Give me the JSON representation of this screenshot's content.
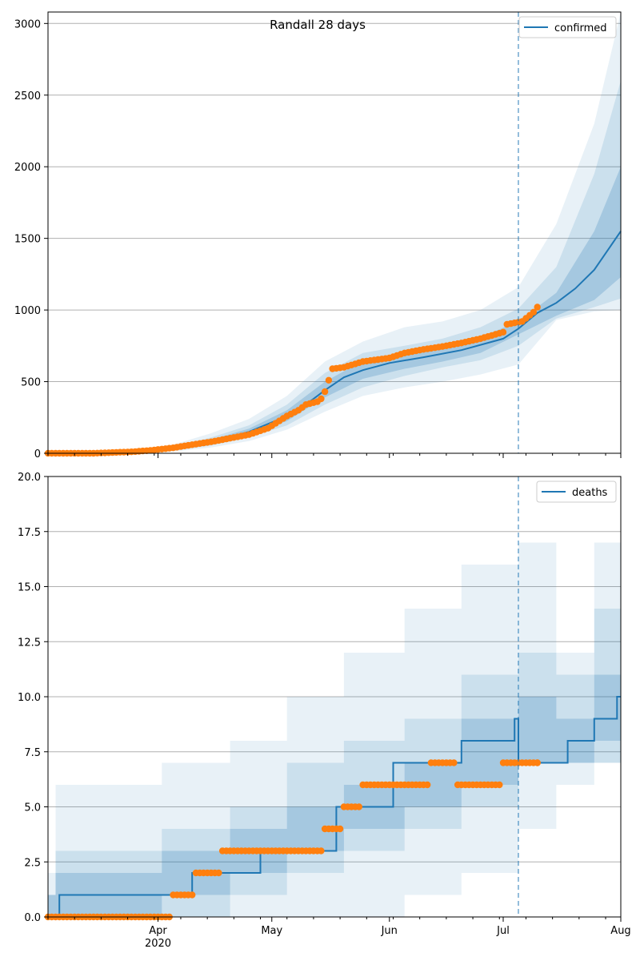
{
  "chart_data": [
    {
      "type": "line",
      "title": "Randall 28 days",
      "xlabel": "",
      "ylabel": "",
      "x_range": [
        "2020-03-03",
        "2020-08-01"
      ],
      "ylim": [
        0,
        3080
      ],
      "y_ticks": [
        0,
        500,
        1000,
        1500,
        2000,
        2500,
        3000
      ],
      "y_tick_labels": [
        "0",
        "500",
        "1000",
        "1500",
        "2000",
        "2500",
        "3000"
      ],
      "x_ticks": [
        "2020-04-01",
        "2020-05-01",
        "2020-06-01",
        "2020-07-01",
        "2020-08-01"
      ],
      "x_tick_labels": [
        "Apr",
        "May",
        "Jun",
        "Jul",
        "Aug"
      ],
      "x_year_label": "2020",
      "grid": "horizontal",
      "legend_position": "top-right",
      "forecast_start": "2020-07-05",
      "colors": {
        "model": "#1f77b4",
        "observed": "#ff7f0e",
        "band": "#1f77b4"
      },
      "series": [
        {
          "name": "confirmed",
          "kind": "model-line",
          "x": [
            "2020-03-03",
            "2020-03-15",
            "2020-03-25",
            "2020-04-05",
            "2020-04-15",
            "2020-04-25",
            "2020-05-05",
            "2020-05-10",
            "2020-05-15",
            "2020-05-20",
            "2020-05-25",
            "2020-06-01",
            "2020-06-10",
            "2020-06-20",
            "2020-07-01",
            "2020-07-05",
            "2020-07-10",
            "2020-07-15",
            "2020-07-20",
            "2020-07-25",
            "2020-08-01"
          ],
          "y": [
            0,
            2,
            8,
            30,
            80,
            150,
            260,
            340,
            440,
            530,
            580,
            630,
            670,
            720,
            800,
            870,
            980,
            1050,
            1150,
            1280,
            1550
          ]
        },
        {
          "kind": "band",
          "level": "inner",
          "x": [
            "2020-03-03",
            "2020-03-25",
            "2020-04-05",
            "2020-04-15",
            "2020-04-25",
            "2020-05-05",
            "2020-05-15",
            "2020-05-25",
            "2020-06-05",
            "2020-06-15",
            "2020-06-25",
            "2020-07-05",
            "2020-07-15",
            "2020-07-25",
            "2020-08-01"
          ],
          "lower": [
            0,
            5,
            24,
            66,
            130,
            225,
            390,
            520,
            590,
            640,
            700,
            830,
            960,
            1070,
            1230
          ],
          "upper": [
            0,
            11,
            37,
            95,
            172,
            300,
            500,
            645,
            700,
            750,
            810,
            920,
            1120,
            1550,
            2000
          ]
        },
        {
          "kind": "band",
          "level": "middle",
          "x": [
            "2020-03-03",
            "2020-03-25",
            "2020-04-05",
            "2020-04-15",
            "2020-04-25",
            "2020-05-05",
            "2020-05-15",
            "2020-05-25",
            "2020-06-05",
            "2020-06-15",
            "2020-06-25",
            "2020-07-05",
            "2020-07-15",
            "2020-07-25",
            "2020-08-01"
          ],
          "lower": [
            0,
            3,
            18,
            55,
            110,
            195,
            340,
            460,
            540,
            600,
            650,
            750,
            940,
            1020,
            1080
          ],
          "upper": [
            0,
            14,
            45,
            110,
            195,
            340,
            560,
            700,
            750,
            800,
            880,
            1010,
            1300,
            1950,
            2600
          ]
        },
        {
          "kind": "band",
          "level": "outer",
          "x": [
            "2020-03-03",
            "2020-03-25",
            "2020-04-05",
            "2020-04-15",
            "2020-04-25",
            "2020-05-05",
            "2020-05-15",
            "2020-05-25",
            "2020-06-05",
            "2020-06-15",
            "2020-06-25",
            "2020-07-05",
            "2020-07-15",
            "2020-07-25",
            "2020-08-01"
          ],
          "lower": [
            0,
            2,
            12,
            40,
            85,
            165,
            290,
            400,
            460,
            500,
            550,
            620,
            930,
            990,
            1000
          ],
          "upper": [
            0,
            20,
            60,
            140,
            240,
            400,
            640,
            780,
            880,
            920,
            1000,
            1160,
            1600,
            2300,
            3080
          ]
        },
        {
          "kind": "observed",
          "x": [
            "2020-03-03",
            "2020-03-10",
            "2020-03-15",
            "2020-03-20",
            "2020-03-25",
            "2020-03-30",
            "2020-04-05",
            "2020-04-10",
            "2020-04-15",
            "2020-04-20",
            "2020-04-25",
            "2020-04-30",
            "2020-05-05",
            "2020-05-08",
            "2020-05-10",
            "2020-05-13",
            "2020-05-14",
            "2020-05-15",
            "2020-05-17",
            "2020-05-20",
            "2020-05-25",
            "2020-06-01",
            "2020-06-05",
            "2020-06-10",
            "2020-06-15",
            "2020-06-20",
            "2020-06-25",
            "2020-07-01",
            "2020-07-02",
            "2020-07-05",
            "2020-07-06",
            "2020-07-09",
            "2020-07-10"
          ],
          "y": [
            0,
            0,
            0,
            5,
            10,
            20,
            38,
            60,
            80,
            105,
            130,
            175,
            260,
            300,
            340,
            360,
            380,
            430,
            590,
            600,
            640,
            665,
            700,
            725,
            745,
            770,
            800,
            845,
            900,
            915,
            920,
            985,
            1020
          ]
        }
      ]
    },
    {
      "type": "line",
      "title": "",
      "xlabel": "",
      "ylabel": "",
      "x_range": [
        "2020-03-03",
        "2020-08-01"
      ],
      "ylim": [
        0,
        20
      ],
      "y_ticks": [
        0,
        2.5,
        5,
        7.5,
        10,
        12.5,
        15,
        17.5,
        20
      ],
      "y_tick_labels": [
        "0.0",
        "2.5",
        "5.0",
        "7.5",
        "10.0",
        "12.5",
        "15.0",
        "17.5",
        "20.0"
      ],
      "x_ticks": [
        "2020-04-01",
        "2020-05-01",
        "2020-06-01",
        "2020-07-01",
        "2020-08-01"
      ],
      "x_tick_labels": [
        "Apr",
        "May",
        "Jun",
        "Jul",
        "Aug"
      ],
      "x_year_label": "2020",
      "grid": "horizontal",
      "legend_position": "top-right",
      "forecast_start": "2020-07-05",
      "colors": {
        "model": "#1f77b4",
        "observed": "#ff7f0e",
        "band": "#1f77b4"
      },
      "series": [
        {
          "name": "deaths",
          "kind": "model-step",
          "x": [
            "2020-03-03",
            "2020-03-06",
            "2020-04-10",
            "2020-04-28",
            "2020-05-18",
            "2020-06-02",
            "2020-06-20",
            "2020-07-04",
            "2020-07-05",
            "2020-07-18",
            "2020-07-25",
            "2020-07-31"
          ],
          "y": [
            0,
            1,
            2,
            3,
            5,
            7,
            8,
            9,
            7,
            8,
            9,
            10
          ]
        },
        {
          "kind": "band-step",
          "level": "inner",
          "x": [
            "2020-03-03",
            "2020-03-05",
            "2020-04-02",
            "2020-04-20",
            "2020-05-05",
            "2020-05-20",
            "2020-06-05",
            "2020-06-20",
            "2020-07-05",
            "2020-07-15",
            "2020-07-25",
            "2020-08-01"
          ],
          "lower": [
            0,
            0,
            1,
            2,
            3,
            4,
            5,
            6,
            7,
            7,
            8,
            8
          ],
          "upper": [
            1,
            2,
            3,
            4,
            5,
            6,
            7,
            9,
            10,
            9,
            11,
            13
          ]
        },
        {
          "kind": "band-step",
          "level": "middle",
          "x": [
            "2020-03-03",
            "2020-03-05",
            "2020-04-02",
            "2020-04-20",
            "2020-05-05",
            "2020-05-20",
            "2020-06-05",
            "2020-06-20",
            "2020-07-05",
            "2020-07-15",
            "2020-07-25",
            "2020-08-01"
          ],
          "lower": [
            0,
            0,
            0,
            1,
            2,
            3,
            4,
            5,
            7,
            7,
            7,
            7
          ],
          "upper": [
            1,
            3,
            4,
            5,
            7,
            8,
            9,
            11,
            12,
            11,
            14,
            16
          ]
        },
        {
          "kind": "band-step",
          "level": "outer",
          "x": [
            "2020-03-03",
            "2020-03-05",
            "2020-04-02",
            "2020-04-20",
            "2020-05-05",
            "2020-05-20",
            "2020-06-05",
            "2020-06-20",
            "2020-07-05",
            "2020-07-15",
            "2020-07-25",
            "2020-08-01"
          ],
          "lower": [
            0,
            0,
            0,
            0,
            0,
            0,
            1,
            2,
            4,
            6,
            7,
            7
          ],
          "upper": [
            2,
            6,
            7,
            8,
            10,
            12,
            14,
            16,
            17,
            12,
            17,
            20
          ]
        },
        {
          "kind": "observed-dots",
          "x": [
            "2020-03-03",
            "2020-04-05",
            "2020-04-11",
            "2020-04-18",
            "2020-05-15",
            "2020-05-20",
            "2020-05-25",
            "2020-06-12",
            "2020-06-19",
            "2020-07-01",
            "2020-07-10"
          ],
          "y": [
            0,
            1,
            2,
            3,
            4,
            5,
            6,
            7,
            6,
            7,
            7
          ],
          "x_end": [
            "2020-04-04",
            "2020-04-10",
            "2020-04-17",
            "2020-05-14",
            "2020-05-19",
            "2020-05-24",
            "2020-06-11",
            "2020-06-18",
            "2020-06-30",
            "2020-07-10",
            "2020-07-10"
          ]
        }
      ]
    }
  ]
}
